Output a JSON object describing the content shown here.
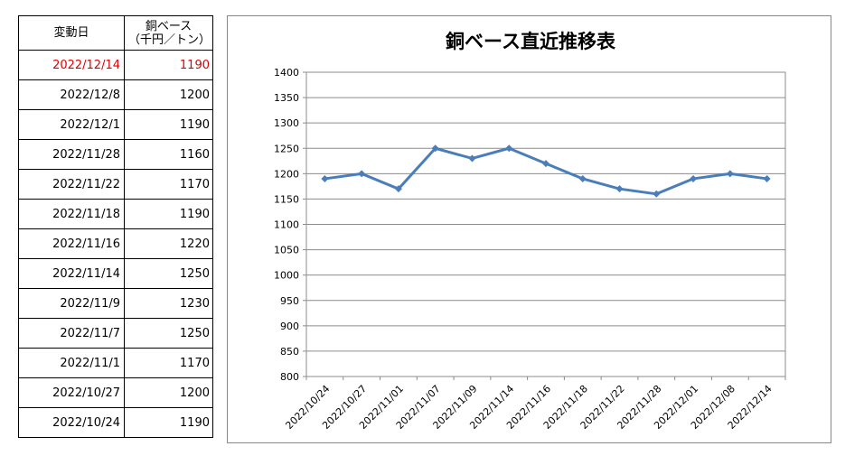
{
  "table": {
    "headers": {
      "date": "変動日",
      "value_line1": "銅ベース",
      "value_line2": "（千円／トン）"
    },
    "rows": [
      {
        "date": "2022/12/14",
        "value": "1190",
        "highlight": true
      },
      {
        "date": "2022/12/8",
        "value": "1200"
      },
      {
        "date": "2022/12/1",
        "value": "1190"
      },
      {
        "date": "2022/11/28",
        "value": "1160"
      },
      {
        "date": "2022/11/22",
        "value": "1170"
      },
      {
        "date": "2022/11/18",
        "value": "1190"
      },
      {
        "date": "2022/11/16",
        "value": "1220"
      },
      {
        "date": "2022/11/14",
        "value": "1250"
      },
      {
        "date": "2022/11/9",
        "value": "1230"
      },
      {
        "date": "2022/11/7",
        "value": "1250"
      },
      {
        "date": "2022/11/1",
        "value": "1170"
      },
      {
        "date": "2022/10/27",
        "value": "1200"
      },
      {
        "date": "2022/10/24",
        "value": "1190"
      }
    ],
    "highlight_color": "#e00000"
  },
  "chart_data": {
    "type": "line",
    "title": "銅ベース直近推移表",
    "xlabel": "",
    "ylabel": "",
    "x": [
      "2022/10/24",
      "2022/10/27",
      "2022/11/01",
      "2022/11/07",
      "2022/11/09",
      "2022/11/14",
      "2022/11/16",
      "2022/11/18",
      "2022/11/22",
      "2022/11/28",
      "2022/12/01",
      "2022/12/08",
      "2022/12/14"
    ],
    "series": [
      {
        "values": [
          1190,
          1200,
          1170,
          1250,
          1230,
          1250,
          1220,
          1190,
          1170,
          1160,
          1190,
          1200,
          1190
        ]
      }
    ],
    "ylim": [
      800,
      1400
    ],
    "yticks": [
      800,
      850,
      900,
      950,
      1000,
      1050,
      1100,
      1150,
      1200,
      1250,
      1300,
      1350,
      1400
    ],
    "grid": true,
    "line_color": "#4a7ebb",
    "legend": "none"
  }
}
